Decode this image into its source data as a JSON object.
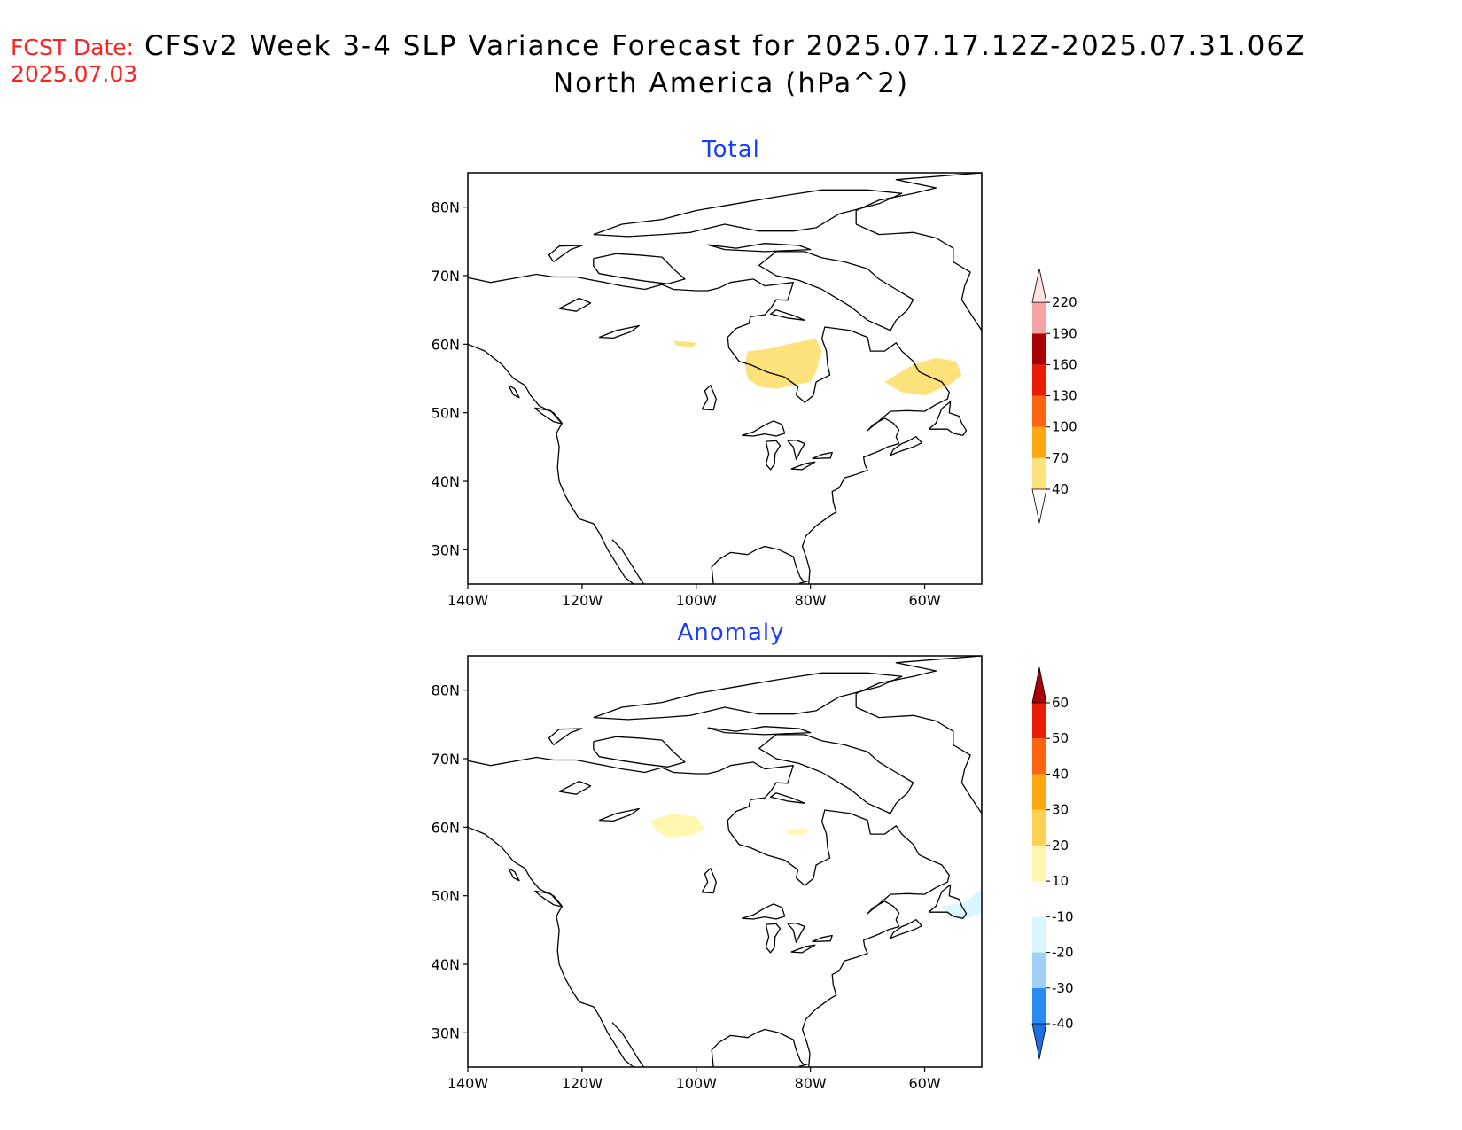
{
  "header": {
    "fcst_label": "FCST Date:",
    "fcst_date": "2025.07.03",
    "title_line1": "CFSv2 Week 3-4 SLP Variance Forecast for 2025.07.17.12Z-2025.07.31.06Z",
    "title_line2": "North America (hPa^2)"
  },
  "axes": {
    "lat_ticks": [
      "80N",
      "70N",
      "60N",
      "50N",
      "40N",
      "30N"
    ],
    "lat_values": [
      80,
      70,
      60,
      50,
      40,
      30
    ],
    "lon_ticks": [
      "140W",
      "120W",
      "100W",
      "80W",
      "60W"
    ],
    "lon_values": [
      -140,
      -120,
      -100,
      -80,
      -60
    ],
    "lon_range": [
      -140,
      -50
    ],
    "lat_range": [
      25,
      85
    ]
  },
  "panels": [
    {
      "title": "Total",
      "colorbar": {
        "levels": [
          "40",
          "70",
          "100",
          "130",
          "160",
          "190",
          "220"
        ],
        "colors": [
          "#fde17a",
          "#fca80e",
          "#fc6410",
          "#ea1c08",
          "#a80005",
          "#f5a3a3",
          "#fde3e3"
        ],
        "has_lower_extension": true,
        "has_upper_extension": true
      },
      "shaded_regions": [
        {
          "level": "40-70",
          "color": "#fde17a",
          "polygon": [
            [
              -104,
              60.5
            ],
            [
              -100,
              60.2
            ],
            [
              -100.5,
              59.6
            ],
            [
              -103.5,
              59.8
            ]
          ]
        },
        {
          "level": "40-70",
          "color": "#fde17a",
          "polygon": [
            [
              -91,
              59
            ],
            [
              -88,
              59.2
            ],
            [
              -84,
              60
            ],
            [
              -79,
              60.8
            ],
            [
              -78,
              59
            ],
            [
              -79,
              56
            ],
            [
              -80,
              54.5
            ],
            [
              -86,
              53.5
            ],
            [
              -89,
              53.8
            ],
            [
              -91,
              55
            ],
            [
              -91.5,
              57
            ]
          ]
        },
        {
          "level": "40-70",
          "color": "#fde17a",
          "polygon": [
            [
              -65,
              55.5
            ],
            [
              -62,
              57
            ],
            [
              -58,
              58
            ],
            [
              -54.5,
              57.5
            ],
            [
              -53.5,
              55.5
            ],
            [
              -55.5,
              54.2
            ],
            [
              -60,
              52.5
            ],
            [
              -64,
              53
            ],
            [
              -67,
              54.5
            ]
          ]
        }
      ]
    },
    {
      "title": "Anomaly",
      "colorbar": {
        "levels": [
          "-40",
          "-30",
          "-20",
          "-10",
          "10",
          "20",
          "30",
          "40",
          "50",
          "60"
        ],
        "colors": [
          "#1e6ee6",
          "#2a8cf0",
          "#9ed0f8",
          "#dcf6ff",
          "#ffffff",
          "#fff6b0",
          "#fdd252",
          "#fca80e",
          "#fc6410",
          "#ea1c08",
          "#a80005"
        ],
        "has_lower_extension": true,
        "has_upper_extension": true
      },
      "shaded_regions": [
        {
          "level": "10-20",
          "color": "#fff6b0",
          "polygon": [
            [
              -108,
              61
            ],
            [
              -104,
              62
            ],
            [
              -100,
              61.5
            ],
            [
              -98.5,
              59.7
            ],
            [
              -101,
              58.8
            ],
            [
              -105,
              58.5
            ],
            [
              -107,
              59.5
            ]
          ]
        },
        {
          "level": "10-20",
          "color": "#fff6b0",
          "polygon": [
            [
              -84,
              59.5
            ],
            [
              -82,
              59.8
            ],
            [
              -80,
              59.6
            ],
            [
              -81.5,
              58.9
            ],
            [
              -84,
              59
            ]
          ]
        },
        {
          "level": "-20--10",
          "color": "#dcf6ff",
          "polygon": [
            [
              -57,
              48.5
            ],
            [
              -53,
              49
            ],
            [
              -50,
              51
            ],
            [
              -50,
              47.5
            ],
            [
              -53,
              46.5
            ],
            [
              -56,
              46.8
            ]
          ]
        }
      ]
    }
  ]
}
